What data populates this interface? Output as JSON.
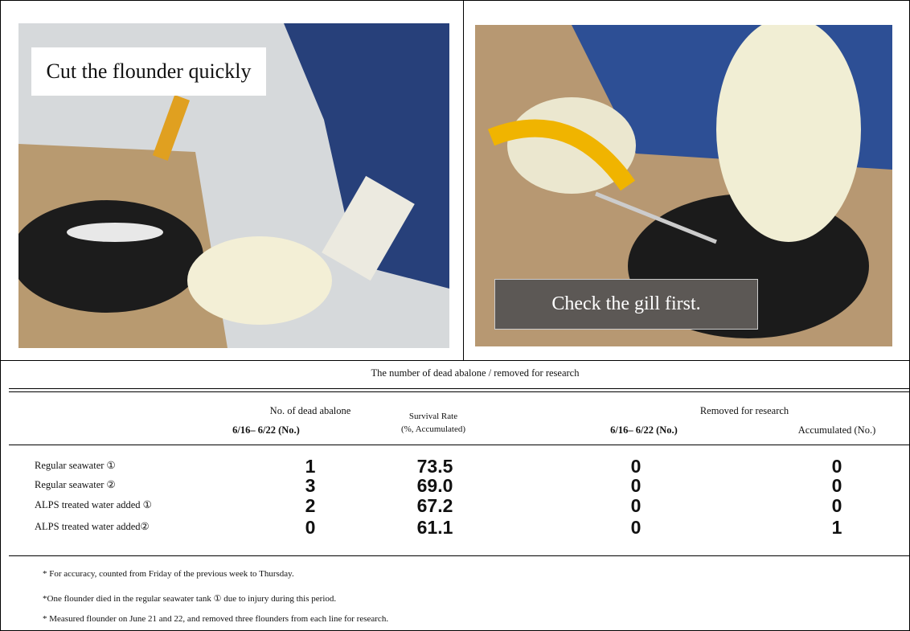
{
  "photos": [
    {
      "caption": "Cut the flounder quickly"
    },
    {
      "caption": "Check the gill first."
    }
  ],
  "table": {
    "title": "The number of dead abalone / removed for research",
    "group_headers": [
      "No. of dead abalone",
      "Removed for research"
    ],
    "columns": [
      "6/16– 6/22 (No.)",
      [
        "Survival Rate",
        "(%, Accumulated)"
      ],
      "6/16– 6/22 (No.)",
      "Accumulated (No.)"
    ],
    "rows": [
      [
        "Regular seawater ①",
        "1",
        "73.5",
        "0",
        "0"
      ],
      [
        "Regular seawater ②",
        "3",
        "69.0",
        "0",
        "0"
      ],
      [
        "ALPS treated water added ①",
        "2",
        "67.2",
        "0",
        "0"
      ],
      [
        "ALPS treated water added②",
        "0",
        "61.1",
        "0",
        "1"
      ]
    ]
  },
  "notes": [
    "* For accuracy, counted from Friday of the previous week to Thursday.",
    "*One flounder died in the regular seawater tank ① due to injury during this period.",
    "* Measured flounder on June 21 and 22, and removed three flounders from each line for research."
  ]
}
